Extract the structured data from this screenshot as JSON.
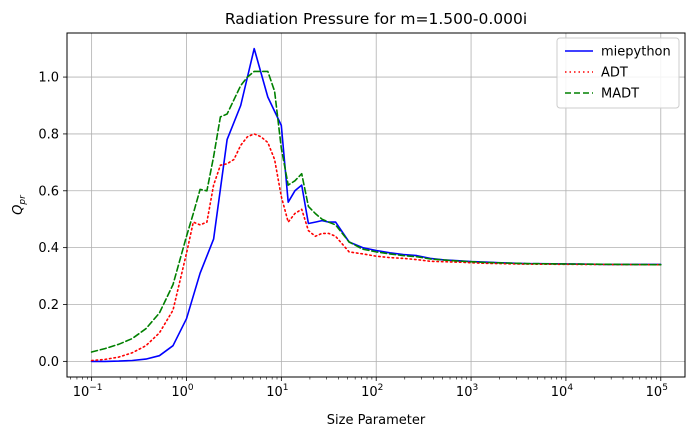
{
  "chart_data": {
    "type": "line",
    "title": "Radiation Pressure for m=1.500-0.000i",
    "xlabel": "Size Parameter",
    "ylabel": "Q",
    "ylabel_sub": "pr",
    "xscale": "log",
    "xlim": [
      0.055,
      180000
    ],
    "ylim": [
      -0.055,
      1.155
    ],
    "grid": true,
    "legend_position": "upper-right",
    "x_ticks": [
      {
        "value": 0.1,
        "base": "10",
        "exp": "−1"
      },
      {
        "value": 1,
        "base": "10",
        "exp": "0"
      },
      {
        "value": 10,
        "base": "10",
        "exp": "1"
      },
      {
        "value": 100,
        "base": "10",
        "exp": "2"
      },
      {
        "value": 1000,
        "base": "10",
        "exp": "3"
      },
      {
        "value": 10000,
        "base": "10",
        "exp": "4"
      },
      {
        "value": 100000,
        "base": "10",
        "exp": "5"
      }
    ],
    "y_ticks": [
      {
        "value": 0.0,
        "label": "0.0"
      },
      {
        "value": 0.2,
        "label": "0.2"
      },
      {
        "value": 0.4,
        "label": "0.4"
      },
      {
        "value": 0.6,
        "label": "0.6"
      },
      {
        "value": 0.8,
        "label": "0.8"
      },
      {
        "value": 1.0,
        "label": "1.0"
      }
    ],
    "series": [
      {
        "name": "miepython",
        "color": "#0000ff",
        "style": "solid",
        "x": [
          0.1,
          0.138,
          0.193,
          0.268,
          0.373,
          0.518,
          0.72,
          1.0,
          1.39,
          1.93,
          2.68,
          3.73,
          5.18,
          7.2,
          10.0,
          11.8,
          13.9,
          16.4,
          19.3,
          22.8,
          26.8,
          31.6,
          37.3,
          51.8,
          72.0,
          100,
          139,
          193,
          268,
          373,
          518,
          720,
          1000,
          1390,
          1930,
          3730,
          7200,
          13900,
          26800,
          51800,
          100000
        ],
        "y": [
          0.0,
          0.0,
          0.001,
          0.003,
          0.008,
          0.02,
          0.055,
          0.15,
          0.31,
          0.43,
          0.78,
          0.9,
          1.1,
          0.93,
          0.83,
          0.56,
          0.6,
          0.62,
          0.485,
          0.49,
          0.495,
          0.49,
          0.49,
          0.42,
          0.4,
          0.39,
          0.382,
          0.376,
          0.372,
          0.362,
          0.357,
          0.354,
          0.351,
          0.349,
          0.347,
          0.344,
          0.343,
          0.342,
          0.341,
          0.341,
          0.341
        ]
      },
      {
        "name": "ADT",
        "color": "#ff0000",
        "style": "dotted",
        "x": [
          0.1,
          0.138,
          0.193,
          0.268,
          0.373,
          0.518,
          0.72,
          1.0,
          1.18,
          1.39,
          1.64,
          1.93,
          2.28,
          2.68,
          3.16,
          3.73,
          4.39,
          5.18,
          6.1,
          7.2,
          8.48,
          10.0,
          11.8,
          13.9,
          16.4,
          19.3,
          22.8,
          26.8,
          31.6,
          37.3,
          51.8,
          72.0,
          100,
          139,
          193,
          268,
          373,
          720,
          1390,
          3730,
          13900,
          100000
        ],
        "y": [
          0.003,
          0.007,
          0.015,
          0.03,
          0.055,
          0.1,
          0.18,
          0.38,
          0.49,
          0.48,
          0.49,
          0.62,
          0.69,
          0.695,
          0.71,
          0.76,
          0.79,
          0.8,
          0.79,
          0.77,
          0.71,
          0.58,
          0.49,
          0.52,
          0.535,
          0.46,
          0.44,
          0.45,
          0.45,
          0.44,
          0.385,
          0.378,
          0.37,
          0.365,
          0.362,
          0.358,
          0.352,
          0.349,
          0.345,
          0.342,
          0.341,
          0.34
        ]
      },
      {
        "name": "MADT",
        "color": "#008000",
        "style": "dashed",
        "x": [
          0.1,
          0.138,
          0.193,
          0.268,
          0.373,
          0.518,
          0.72,
          1.0,
          1.18,
          1.39,
          1.64,
          1.93,
          2.28,
          2.68,
          3.16,
          3.73,
          4.39,
          5.18,
          6.1,
          7.2,
          8.48,
          10.0,
          11.8,
          13.9,
          16.4,
          19.3,
          22.8,
          26.8,
          31.6,
          37.3,
          51.8,
          72.0,
          100,
          139,
          193,
          268,
          373,
          720,
          1390,
          3730,
          13900,
          100000
        ],
        "y": [
          0.033,
          0.045,
          0.06,
          0.08,
          0.115,
          0.17,
          0.27,
          0.44,
          0.52,
          0.605,
          0.6,
          0.72,
          0.86,
          0.87,
          0.92,
          0.97,
          1.0,
          1.02,
          1.02,
          1.02,
          0.95,
          0.75,
          0.62,
          0.635,
          0.66,
          0.545,
          0.52,
          0.5,
          0.49,
          0.48,
          0.42,
          0.395,
          0.385,
          0.378,
          0.372,
          0.368,
          0.36,
          0.353,
          0.348,
          0.344,
          0.342,
          0.34
        ]
      }
    ]
  }
}
